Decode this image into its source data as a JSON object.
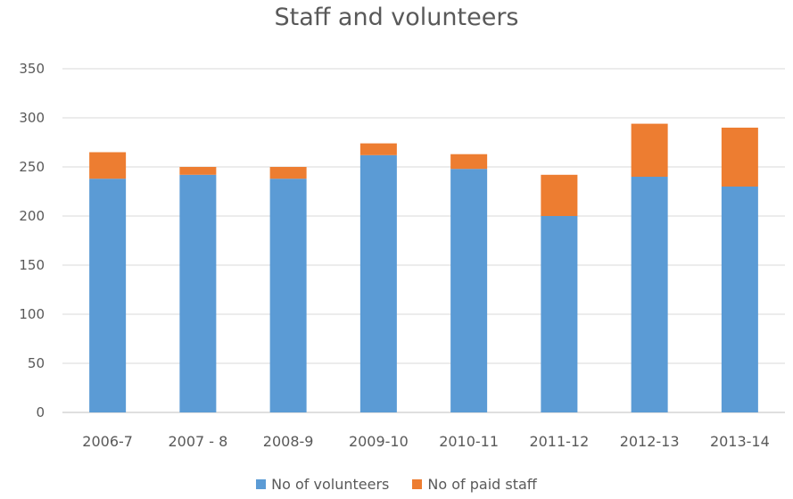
{
  "colors": {
    "volunteers": "#5b9bd5",
    "paid_staff": "#ed7d31",
    "grid": "#d9d9d9",
    "text": "#595959"
  },
  "chart_data": {
    "type": "bar",
    "stacked": true,
    "title": "Staff and volunteers",
    "xlabel": "",
    "ylabel": "",
    "ylim": [
      0,
      350
    ],
    "yticks": [
      0,
      50,
      100,
      150,
      200,
      250,
      300,
      350
    ],
    "grid": true,
    "legend_position": "bottom",
    "categories": [
      "2006-7",
      "2007 - 8",
      "2008-9",
      "2009-10",
      "2010-11",
      "2011-12",
      "2012-13",
      "2013-14"
    ],
    "series": [
      {
        "name": "No of volunteers",
        "color": "#5b9bd5",
        "values": [
          238,
          242,
          238,
          262,
          248,
          200,
          240,
          230
        ]
      },
      {
        "name": "No of paid staff",
        "color": "#ed7d31",
        "values": [
          27,
          8,
          12,
          12,
          15,
          42,
          54,
          60
        ]
      }
    ]
  }
}
